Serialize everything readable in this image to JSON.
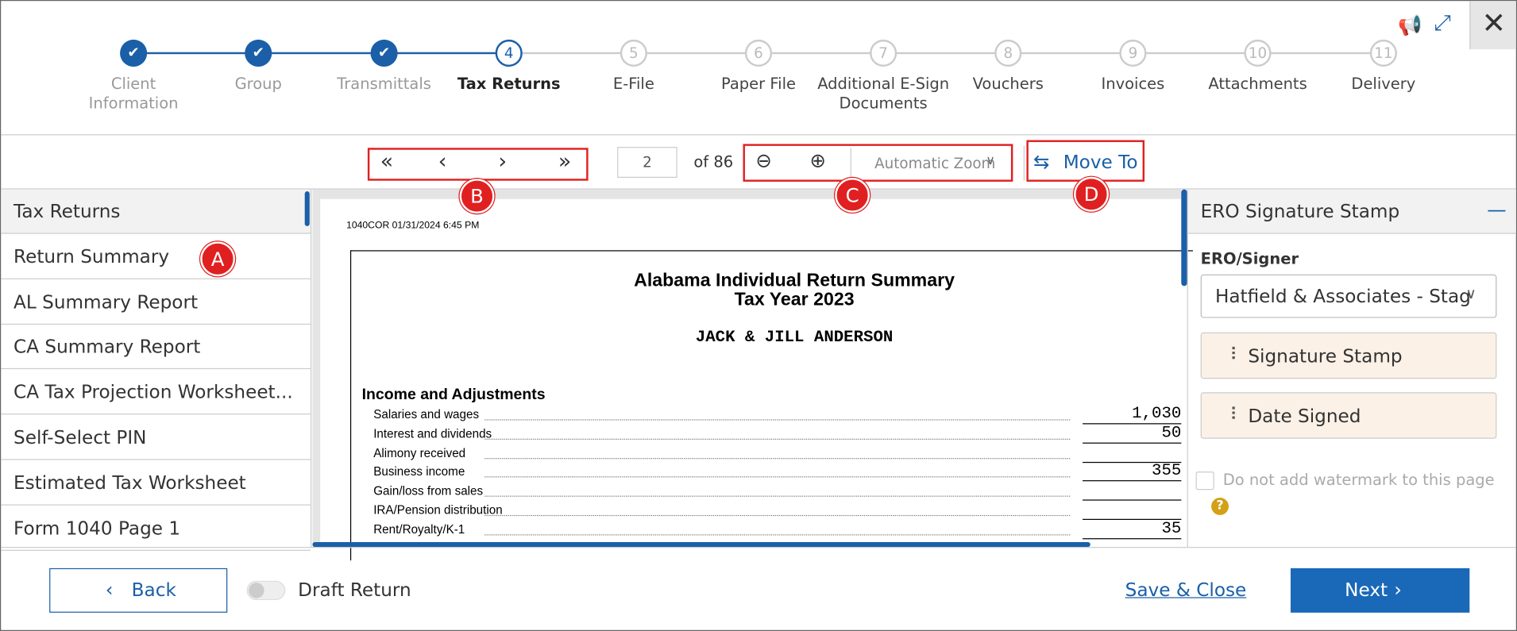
{
  "steps": [
    {
      "label": "Client Information",
      "state": "done"
    },
    {
      "label": "Group",
      "state": "done"
    },
    {
      "label": "Transmittals",
      "state": "done"
    },
    {
      "label": "Tax Returns",
      "number": "4",
      "state": "current"
    },
    {
      "label": "E-File",
      "number": "5",
      "state": "todo"
    },
    {
      "label": "Paper File",
      "number": "6",
      "state": "todo"
    },
    {
      "label": "Additional E-Sign Documents",
      "number": "7",
      "state": "todo"
    },
    {
      "label": "Vouchers",
      "number": "8",
      "state": "todo"
    },
    {
      "label": "Invoices",
      "number": "9",
      "state": "todo"
    },
    {
      "label": "Attachments",
      "number": "10",
      "state": "todo"
    },
    {
      "label": "Delivery",
      "number": "11",
      "state": "todo"
    }
  ],
  "toolbar": {
    "page": "2",
    "of_pages": "of 86",
    "zoom": "Automatic Zoom",
    "move_to": "Move To"
  },
  "annotations": {
    "a": "A",
    "b": "B",
    "c": "C",
    "d": "D"
  },
  "sidebar": {
    "items": [
      "Tax Returns",
      "Return Summary",
      "AL Summary Report",
      "CA Summary Report",
      "CA Tax Projection Worksheet...",
      "Self-Select PIN",
      "Estimated Tax Worksheet",
      "Form 1040 Page 1"
    ],
    "selected": 0
  },
  "document": {
    "header": "1040COR 01/31/2024 6:45 PM",
    "title": "Alabama Individual Return Summary",
    "subtitle": "Tax Year 2023",
    "name": "JACK & JILL ANDERSON",
    "section": "Income and Adjustments",
    "rows": [
      {
        "label": "Salaries and wages",
        "value": "1,030"
      },
      {
        "label": "Interest and dividends",
        "value": "50"
      },
      {
        "label": "Alimony received"
      },
      {
        "label": "Business income",
        "value": "355"
      },
      {
        "label": "Gain/loss from sales"
      },
      {
        "label": "IRA/Pension distribution"
      },
      {
        "label": "Rent/Royalty/K-1",
        "value": "35"
      }
    ]
  },
  "panel": {
    "title": "ERO Signature Stamp",
    "signer_label": "ERO/Signer",
    "signer": "Hatfield & Associates - Stag",
    "stamps": [
      "Signature Stamp",
      "Date Signed"
    ],
    "watermark": "Do not add watermark to this page"
  },
  "footer": {
    "back": "Back",
    "draft": "Draft Return",
    "save": "Save & Close",
    "next": "Next"
  }
}
